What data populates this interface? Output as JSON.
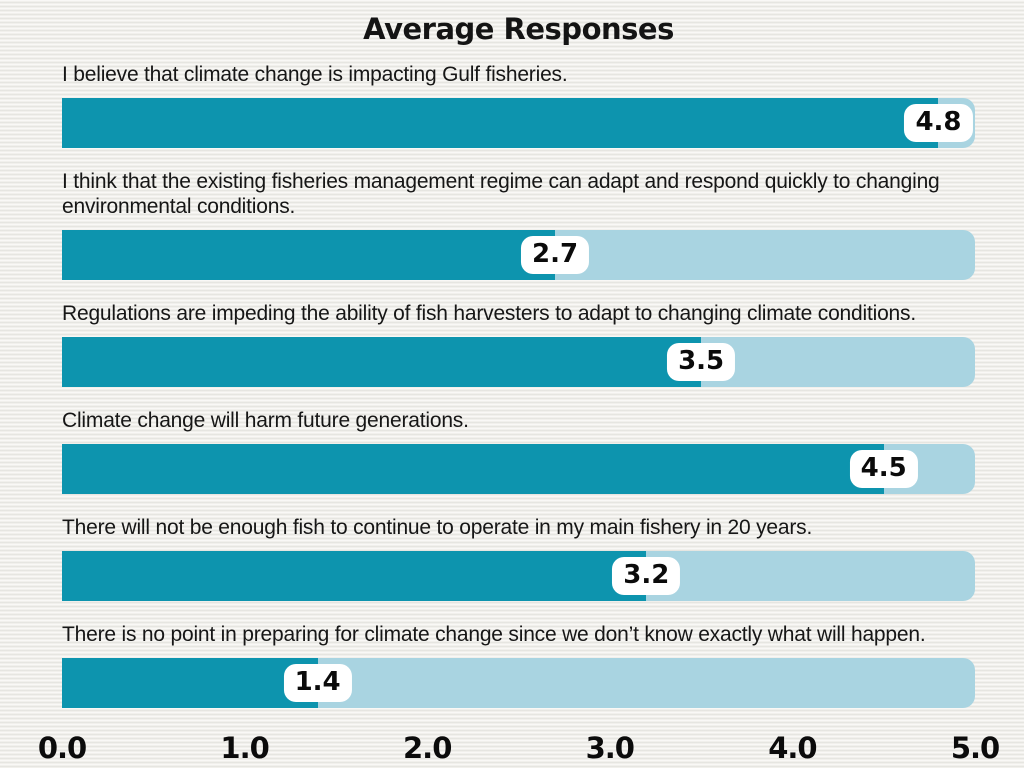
{
  "title": "Average Responses",
  "chart_data": {
    "type": "bar",
    "orientation": "horizontal",
    "title": "Average Responses",
    "categories": [
      "I believe that climate change is impacting Gulf fisheries.",
      "I think that the existing fisheries management regime can adapt and respond quickly to changing environmental conditions.",
      "Regulations are impeding the ability of fish harvesters to adapt to changing climate conditions.",
      "Climate change will harm future generations.",
      "There will not be enough fish to continue to operate in my main fishery in 20 years.",
      "There is no point in preparing for climate change since we don’t know exactly what will happen."
    ],
    "values": [
      4.8,
      2.7,
      3.5,
      4.5,
      3.2,
      1.4
    ],
    "value_labels": [
      "4.8",
      "2.7",
      "3.5",
      "4.5",
      "3.2",
      "1.4"
    ],
    "xlim": [
      0,
      5
    ],
    "x_ticks": [
      "0.0",
      "1.0",
      "2.0",
      "3.0",
      "4.0",
      "5.0"
    ],
    "x_tick_values": [
      0,
      1,
      2,
      3,
      4,
      5
    ],
    "grid": false,
    "legend": false,
    "colors": {
      "bar_fill": "#0d94ae",
      "bar_track": "#a9d4e1",
      "value_box_bg": "#ffffff",
      "text": "#141414",
      "background": "#f1f0ec"
    }
  }
}
